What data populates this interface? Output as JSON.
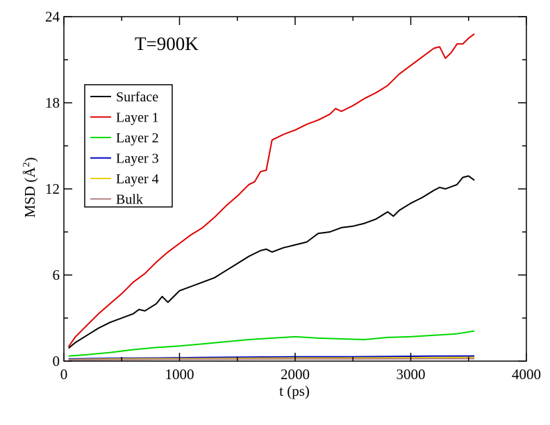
{
  "chart_data": {
    "type": "line",
    "title": "",
    "annotation": "T=900K",
    "xlabel": "t (ps)",
    "ylabel_main": "MSD (",
    "ylabel_unit": "Å",
    "ylabel_sup": "2",
    "ylabel_close": ")",
    "xlim": [
      0,
      4000
    ],
    "ylim": [
      0,
      24
    ],
    "xticks": [
      0,
      1000,
      2000,
      3000,
      4000
    ],
    "yticks": [
      0,
      6,
      12,
      18,
      24
    ],
    "grid": false,
    "legend_position": "upper-left",
    "series": [
      {
        "name": "Surface",
        "color": "#000000",
        "x": [
          40,
          100,
          200,
          300,
          400,
          500,
          600,
          650,
          700,
          800,
          850,
          900,
          950,
          1000,
          1100,
          1200,
          1300,
          1400,
          1500,
          1600,
          1700,
          1750,
          1800,
          1900,
          1950,
          2000,
          2100,
          2200,
          2300,
          2400,
          2500,
          2600,
          2700,
          2800,
          2850,
          2900,
          3000,
          3050,
          3100,
          3200,
          3250,
          3300,
          3400,
          3450,
          3500,
          3550
        ],
        "values": [
          0.9,
          1.3,
          1.8,
          2.3,
          2.7,
          3.0,
          3.3,
          3.6,
          3.5,
          4.0,
          4.5,
          4.1,
          4.5,
          4.9,
          5.2,
          5.5,
          5.8,
          6.3,
          6.8,
          7.3,
          7.7,
          7.8,
          7.6,
          7.9,
          8.0,
          8.1,
          8.3,
          8.9,
          9.0,
          9.3,
          9.4,
          9.6,
          9.9,
          10.4,
          10.1,
          10.5,
          11.0,
          11.2,
          11.4,
          11.9,
          12.1,
          12.0,
          12.3,
          12.8,
          12.9,
          12.6
        ]
      },
      {
        "name": "Layer 1",
        "color": "#e00000",
        "x": [
          40,
          100,
          200,
          300,
          400,
          500,
          600,
          700,
          800,
          900,
          1000,
          1100,
          1200,
          1300,
          1400,
          1500,
          1600,
          1650,
          1700,
          1750,
          1800,
          1900,
          2000,
          2100,
          2200,
          2300,
          2350,
          2400,
          2500,
          2600,
          2700,
          2800,
          2900,
          3000,
          3100,
          3200,
          3250,
          3300,
          3350,
          3400,
          3450,
          3500,
          3550
        ],
        "values": [
          1.0,
          1.7,
          2.5,
          3.3,
          4.0,
          4.7,
          5.5,
          6.1,
          6.9,
          7.6,
          8.2,
          8.8,
          9.3,
          10.0,
          10.8,
          11.5,
          12.3,
          12.5,
          13.2,
          13.3,
          15.4,
          15.8,
          16.1,
          16.5,
          16.8,
          17.2,
          17.6,
          17.4,
          17.8,
          18.3,
          18.7,
          19.2,
          20.0,
          20.6,
          21.2,
          21.8,
          21.9,
          21.1,
          21.5,
          22.1,
          22.1,
          22.5,
          22.8
        ]
      },
      {
        "name": "Layer 2",
        "color": "#00d800",
        "x": [
          40,
          200,
          400,
          600,
          800,
          1000,
          1200,
          1400,
          1600,
          1800,
          2000,
          2200,
          2400,
          2600,
          2800,
          3000,
          3200,
          3400,
          3550
        ],
        "values": [
          0.35,
          0.45,
          0.6,
          0.8,
          0.95,
          1.05,
          1.2,
          1.35,
          1.5,
          1.6,
          1.7,
          1.6,
          1.55,
          1.5,
          1.65,
          1.7,
          1.8,
          1.9,
          2.1
        ]
      },
      {
        "name": "Layer 3",
        "color": "#0000c8",
        "x": [
          40,
          400,
          800,
          1200,
          1600,
          2000,
          2400,
          2800,
          3200,
          3550
        ],
        "values": [
          0.15,
          0.2,
          0.22,
          0.25,
          0.28,
          0.3,
          0.3,
          0.32,
          0.35,
          0.36
        ]
      },
      {
        "name": "Layer 4",
        "color": "#e8d000",
        "x": [
          40,
          400,
          800,
          1200,
          1600,
          2000,
          2400,
          2800,
          3200,
          3550
        ],
        "values": [
          0.1,
          0.15,
          0.17,
          0.18,
          0.2,
          0.22,
          0.22,
          0.23,
          0.25,
          0.26
        ]
      },
      {
        "name": "Bulk",
        "color": "#b08080",
        "x": [
          40,
          400,
          800,
          1200,
          1600,
          2000,
          2400,
          2800,
          3200,
          3550
        ],
        "values": [
          0.08,
          0.1,
          0.12,
          0.13,
          0.14,
          0.15,
          0.15,
          0.16,
          0.17,
          0.17
        ]
      }
    ]
  }
}
